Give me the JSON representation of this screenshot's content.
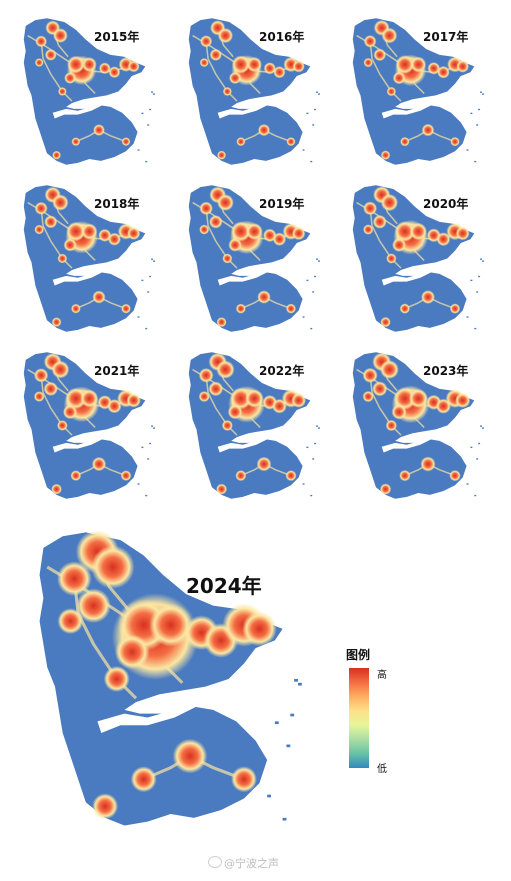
{
  "panels": [
    {
      "year": "2015年"
    },
    {
      "year": "2016年"
    },
    {
      "year": "2017年"
    },
    {
      "year": "2018年"
    },
    {
      "year": "2019年"
    },
    {
      "year": "2020年"
    },
    {
      "year": "2021年"
    },
    {
      "year": "2022年"
    },
    {
      "year": "2023年"
    },
    {
      "year": "2024年"
    }
  ],
  "legend": {
    "title": "图例",
    "high": "高",
    "low": "低"
  },
  "watermark": "@宁波之声",
  "colors": {
    "land": "#4a7abf",
    "high": "#d7301f",
    "glow": "#fbe6a2",
    "mid": "#f46d43"
  }
}
